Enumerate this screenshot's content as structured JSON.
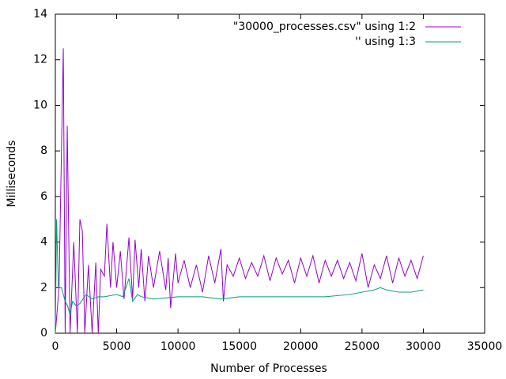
{
  "chart_data": {
    "type": "line",
    "xlabel": "Number of Processes",
    "ylabel": "Milliseconds",
    "xlim": [
      0,
      35000
    ],
    "xticks": [
      0,
      5000,
      10000,
      15000,
      20000,
      25000,
      30000,
      35000
    ],
    "ylim": [
      0,
      14
    ],
    "yticks": [
      0,
      2,
      4,
      6,
      8,
      10,
      12,
      14
    ],
    "grid": false,
    "legend": "top-right",
    "series": [
      {
        "name": "\"30000_processes.csv\" using 1:2",
        "color": "#9400d3",
        "x": [
          0,
          300,
          650,
          800,
          970,
          1200,
          1500,
          1800,
          2000,
          2200,
          2400,
          2700,
          3000,
          3300,
          3500,
          3700,
          4000,
          4200,
          4500,
          4700,
          5000,
          5300,
          5600,
          6000,
          6300,
          6500,
          6800,
          7000,
          7300,
          7600,
          8000,
          8500,
          9000,
          9200,
          9400,
          9800,
          10000,
          10500,
          11000,
          11500,
          12000,
          12500,
          13000,
          13500,
          13700,
          14000,
          14500,
          15000,
          15500,
          16000,
          16500,
          17000,
          17500,
          18000,
          18500,
          19000,
          19500,
          20000,
          20500,
          21000,
          21500,
          22000,
          22500,
          23000,
          23500,
          24000,
          24500,
          25000,
          25500,
          26000,
          26500,
          27000,
          27500,
          28000,
          28500,
          29000,
          29500,
          30000
        ],
        "values": [
          0,
          2.0,
          12.5,
          0,
          9.1,
          0,
          4.0,
          0,
          5.0,
          4.5,
          0,
          3.0,
          0,
          3.1,
          0,
          2.8,
          2.5,
          4.8,
          2.0,
          4.0,
          2.0,
          3.6,
          1.5,
          4.2,
          1.5,
          4.1,
          2.0,
          3.7,
          1.4,
          3.4,
          2.0,
          3.6,
          1.9,
          3.3,
          1.1,
          3.5,
          2.2,
          3.2,
          2.0,
          3.0,
          1.8,
          3.4,
          2.2,
          3.7,
          1.4,
          3.0,
          2.5,
          3.3,
          2.4,
          3.1,
          2.5,
          3.4,
          2.3,
          3.3,
          2.6,
          3.2,
          2.2,
          3.3,
          2.5,
          3.4,
          2.2,
          3.2,
          2.5,
          3.2,
          2.4,
          3.1,
          2.3,
          3.5,
          2.0,
          3.0,
          2.4,
          3.4,
          2.2,
          3.3,
          2.5,
          3.2,
          2.4,
          3.4
        ]
      },
      {
        "name": "'' using 1:3",
        "color": "#009e73",
        "x": [
          0,
          100,
          250,
          500,
          800,
          1000,
          1200,
          1400,
          1700,
          2000,
          2500,
          3000,
          3500,
          4000,
          5000,
          5500,
          6000,
          6300,
          6700,
          7000,
          8000,
          10000,
          12000,
          13500,
          15000,
          17000,
          20000,
          22000,
          24000,
          25000,
          26000,
          26500,
          27000,
          28000,
          29000,
          30000
        ],
        "values": [
          0,
          5.0,
          2.0,
          2.0,
          1.4,
          1.2,
          0.8,
          1.4,
          1.2,
          1.3,
          1.7,
          1.5,
          1.6,
          1.6,
          1.7,
          1.6,
          2.4,
          1.4,
          1.7,
          1.6,
          1.5,
          1.6,
          1.6,
          1.5,
          1.6,
          1.6,
          1.6,
          1.6,
          1.7,
          1.8,
          1.9,
          2.0,
          1.9,
          1.8,
          1.8,
          1.9
        ]
      }
    ]
  }
}
